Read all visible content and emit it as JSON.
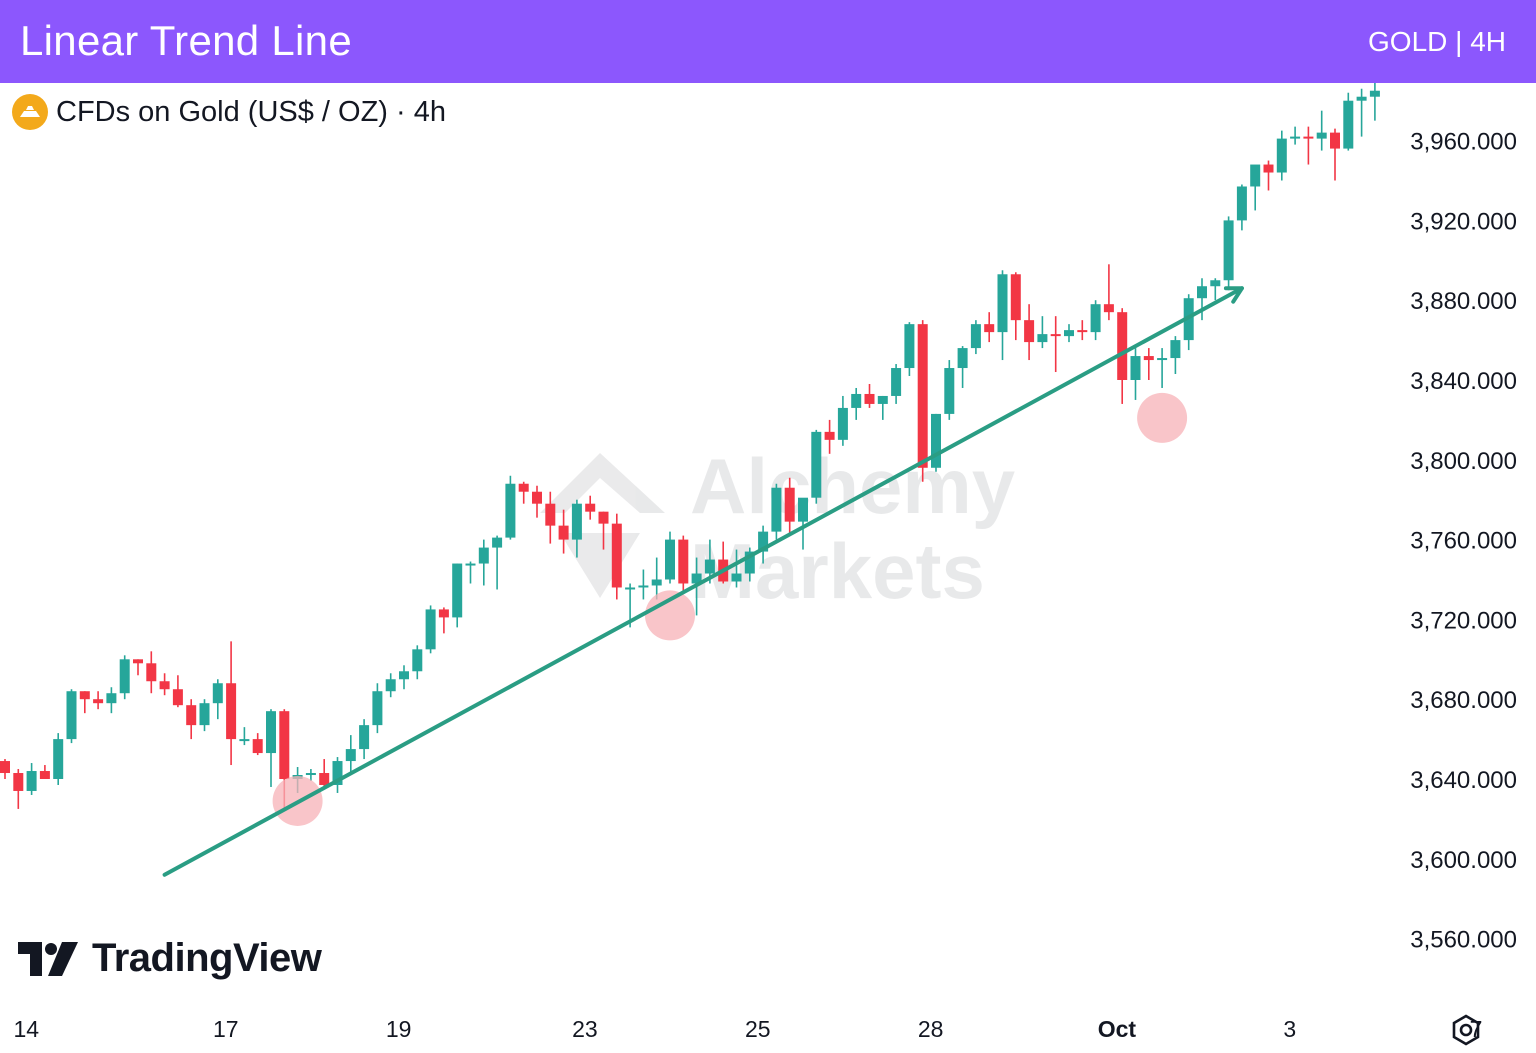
{
  "header": {
    "title": "Linear Trend Line",
    "symbol": "GOLD | 4H"
  },
  "legend": {
    "instrument": "CFDs on Gold (US$ / OZ) · 4h",
    "icon": "gold-coin-icon"
  },
  "branding": {
    "name": "TradingView",
    "watermark_line1": "Alchemy",
    "watermark_line2": "Markets"
  },
  "colors": {
    "header": "#8c57fd",
    "up": "#26a69a",
    "down": "#f23645",
    "trendline": "#2a9d84",
    "touch": "#f7b2b7"
  },
  "chart_data": {
    "type": "candlestick",
    "title": "CFDs on Gold (US$ / OZ) · 4h",
    "ylim": [
      3540,
      3990
    ],
    "yticks": [
      "3,560.000",
      "3,600.000",
      "3,640.000",
      "3,680.000",
      "3,720.000",
      "3,760.000",
      "3,800.000",
      "3,840.000",
      "3,880.000",
      "3,920.000",
      "3,960.000"
    ],
    "ytick_values": [
      3560,
      3600,
      3640,
      3680,
      3720,
      3760,
      3800,
      3840,
      3880,
      3920,
      3960
    ],
    "xticks": [
      "14",
      "17",
      "19",
      "23",
      "25",
      "28",
      "Oct",
      "3",
      "7"
    ],
    "xtick_bar_index": [
      1,
      16,
      29,
      43,
      56,
      69,
      83,
      96,
      110
    ],
    "candles": [
      [
        3649,
        3650,
        3640,
        3643
      ],
      [
        3643,
        3645,
        3625,
        3634
      ],
      [
        3634,
        3648,
        3632,
        3644
      ],
      [
        3644,
        3647,
        3640,
        3640
      ],
      [
        3640,
        3663,
        3637,
        3660
      ],
      [
        3660,
        3685,
        3658,
        3684
      ],
      [
        3684,
        3684,
        3673,
        3680
      ],
      [
        3680,
        3684,
        3675,
        3678
      ],
      [
        3678,
        3686,
        3673,
        3683
      ],
      [
        3683,
        3702,
        3680,
        3700
      ],
      [
        3700,
        3700,
        3692,
        3698
      ],
      [
        3698,
        3704,
        3683,
        3689
      ],
      [
        3689,
        3693,
        3682,
        3685
      ],
      [
        3685,
        3692,
        3676,
        3677
      ],
      [
        3677,
        3680,
        3660,
        3667
      ],
      [
        3667,
        3680,
        3664,
        3678
      ],
      [
        3678,
        3690,
        3670,
        3688
      ],
      [
        3688,
        3709,
        3647,
        3660
      ],
      [
        3660,
        3666,
        3657,
        3660
      ],
      [
        3660,
        3663,
        3652,
        3653
      ],
      [
        3653,
        3675,
        3636,
        3674
      ],
      [
        3674,
        3675,
        3625,
        3640
      ],
      [
        3640,
        3646,
        3633,
        3642
      ],
      [
        3642,
        3645,
        3639,
        3643
      ],
      [
        3643,
        3650,
        3635,
        3637
      ],
      [
        3637,
        3651,
        3633,
        3649
      ],
      [
        3649,
        3662,
        3643,
        3655
      ],
      [
        3655,
        3670,
        3650,
        3667
      ],
      [
        3667,
        3688,
        3663,
        3684
      ],
      [
        3684,
        3693,
        3681,
        3690
      ],
      [
        3690,
        3697,
        3685,
        3694
      ],
      [
        3694,
        3707,
        3690,
        3705
      ],
      [
        3705,
        3727,
        3703,
        3725
      ],
      [
        3725,
        3726,
        3713,
        3721
      ],
      [
        3721,
        3748,
        3716,
        3748
      ],
      [
        3748,
        3749,
        3738,
        3748
      ],
      [
        3748,
        3760,
        3737,
        3756
      ],
      [
        3756,
        3762,
        3735,
        3761
      ],
      [
        3761,
        3792,
        3760,
        3788
      ],
      [
        3788,
        3789,
        3778,
        3784
      ],
      [
        3784,
        3787,
        3771,
        3778
      ],
      [
        3778,
        3784,
        3758,
        3767
      ],
      [
        3767,
        3775,
        3753,
        3760
      ],
      [
        3760,
        3780,
        3751,
        3778
      ],
      [
        3778,
        3782,
        3770,
        3774
      ],
      [
        3774,
        3774,
        3755,
        3768
      ],
      [
        3768,
        3773,
        3730,
        3736
      ],
      [
        3736,
        3738,
        3716,
        3736
      ],
      [
        3736,
        3745,
        3730,
        3737
      ],
      [
        3737,
        3751,
        3730,
        3740
      ],
      [
        3740,
        3764,
        3738,
        3760
      ],
      [
        3760,
        3762,
        3734,
        3738
      ],
      [
        3738,
        3751,
        3722,
        3743
      ],
      [
        3743,
        3760,
        3738,
        3750
      ],
      [
        3750,
        3759,
        3738,
        3739
      ],
      [
        3739,
        3755,
        3736,
        3743
      ],
      [
        3743,
        3756,
        3739,
        3754
      ],
      [
        3754,
        3767,
        3748,
        3764
      ],
      [
        3764,
        3788,
        3760,
        3786
      ],
      [
        3786,
        3791,
        3763,
        3769
      ],
      [
        3769,
        3780,
        3755,
        3781
      ],
      [
        3781,
        3815,
        3778,
        3814
      ],
      [
        3814,
        3820,
        3803,
        3810
      ],
      [
        3810,
        3832,
        3807,
        3826
      ],
      [
        3826,
        3836,
        3820,
        3833
      ],
      [
        3833,
        3838,
        3826,
        3828
      ],
      [
        3828,
        3832,
        3820,
        3832
      ],
      [
        3832,
        3848,
        3828,
        3846
      ],
      [
        3846,
        3869,
        3842,
        3868
      ],
      [
        3868,
        3870,
        3789,
        3796
      ],
      [
        3796,
        3823,
        3794,
        3823
      ],
      [
        3823,
        3850,
        3820,
        3846
      ],
      [
        3846,
        3857,
        3836,
        3856
      ],
      [
        3856,
        3870,
        3853,
        3868
      ],
      [
        3868,
        3874,
        3859,
        3864
      ],
      [
        3864,
        3895,
        3850,
        3893
      ],
      [
        3893,
        3894,
        3860,
        3870
      ],
      [
        3870,
        3878,
        3850,
        3859
      ],
      [
        3859,
        3872,
        3856,
        3863
      ],
      [
        3863,
        3872,
        3844,
        3862
      ],
      [
        3862,
        3868,
        3859,
        3865
      ],
      [
        3865,
        3870,
        3860,
        3864
      ],
      [
        3864,
        3880,
        3860,
        3878
      ],
      [
        3878,
        3898,
        3870,
        3874
      ],
      [
        3874,
        3876,
        3828,
        3840
      ],
      [
        3840,
        3856,
        3830,
        3852
      ],
      [
        3852,
        3856,
        3840,
        3850
      ],
      [
        3850,
        3856,
        3836,
        3851
      ],
      [
        3851,
        3862,
        3843,
        3860
      ],
      [
        3860,
        3883,
        3855,
        3881
      ],
      [
        3881,
        3891,
        3870,
        3887
      ],
      [
        3887,
        3891,
        3880,
        3890
      ],
      [
        3890,
        3922,
        3885,
        3920
      ],
      [
        3920,
        3938,
        3915,
        3937
      ],
      [
        3937,
        3947,
        3925,
        3948
      ],
      [
        3948,
        3950,
        3935,
        3944
      ],
      [
        3944,
        3965,
        3940,
        3961
      ],
      [
        3961,
        3967,
        3958,
        3962
      ],
      [
        3962,
        3967,
        3948,
        3961
      ],
      [
        3961,
        3975,
        3955,
        3964
      ],
      [
        3964,
        3966,
        3940,
        3956
      ],
      [
        3956,
        3984,
        3955,
        3980
      ],
      [
        3980,
        3986,
        3962,
        3982
      ],
      [
        3982,
        3989,
        3970,
        3985
      ]
    ],
    "trendline": {
      "start": {
        "bar": 12,
        "price": 3592
      },
      "end": {
        "bar": 93,
        "price": 3886
      }
    },
    "touch_points": [
      {
        "bar": 22,
        "price": 3629
      },
      {
        "bar": 50,
        "price": 3722
      },
      {
        "bar": 87,
        "price": 3821
      }
    ]
  }
}
